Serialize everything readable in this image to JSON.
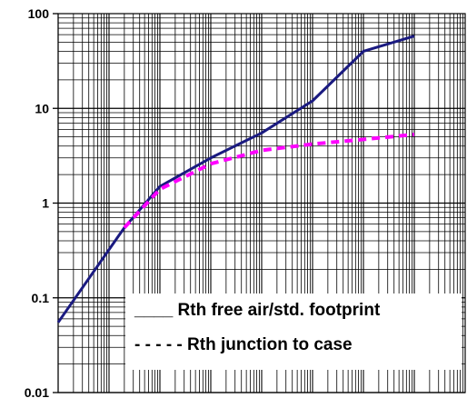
{
  "chart_data": {
    "type": "line",
    "title": "",
    "xlabel": "",
    "ylabel": "",
    "yscale": "log",
    "xscale": "log",
    "xlim": [
      1e-06,
      100
    ],
    "ylim": [
      0.01,
      100
    ],
    "grid": true,
    "x_tick_labels_shown": false,
    "y_ticks": [
      {
        "value": 100,
        "label": "100"
      },
      {
        "value": 10,
        "label": "10"
      },
      {
        "value": 1,
        "label": "1"
      },
      {
        "value": 0.1,
        "label": "0.1"
      },
      {
        "value": 0.01,
        "label": "0.01"
      }
    ],
    "legend_position": "bottom-right",
    "series": [
      {
        "name": "Rth free air/std. footprint",
        "legend_label": "____  Rth free air/std. footprint",
        "style": "solid",
        "color": "#1a1a80",
        "points": [
          [
            1e-06,
            0.055
          ],
          [
            2e-05,
            0.55
          ],
          [
            0.0001,
            1.5
          ],
          [
            0.001,
            3.0
          ],
          [
            0.01,
            5.5
          ],
          [
            0.1,
            12
          ],
          [
            1,
            40
          ],
          [
            10,
            58
          ]
        ]
      },
      {
        "name": "Rth junction to case",
        "legend_label": "- - - - - Rth junction to case",
        "style": "dashed",
        "color": "#ff00ff",
        "points": [
          [
            2e-05,
            0.55
          ],
          [
            0.0001,
            1.4
          ],
          [
            0.001,
            2.6
          ],
          [
            0.01,
            3.6
          ],
          [
            0.1,
            4.2
          ],
          [
            1,
            4.7
          ],
          [
            10,
            5.3
          ]
        ]
      }
    ]
  }
}
